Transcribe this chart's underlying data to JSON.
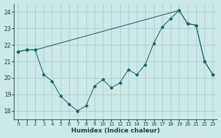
{
  "xlabel": "Humidex (Indice chaleur)",
  "background_color": "#cce8e8",
  "grid_color": "#aacccc",
  "line_color": "#1a6b6b",
  "xlim": [
    -0.5,
    23.5
  ],
  "ylim": [
    17.5,
    24.5
  ],
  "yticks": [
    18,
    19,
    20,
    21,
    22,
    23,
    24
  ],
  "xticks": [
    0,
    1,
    2,
    3,
    4,
    5,
    6,
    7,
    8,
    9,
    10,
    11,
    12,
    13,
    14,
    15,
    16,
    17,
    18,
    19,
    20,
    21,
    22,
    23
  ],
  "series_wavy_x": [
    0,
    1,
    2,
    3,
    4,
    5,
    6,
    7,
    8,
    9,
    10,
    11,
    12,
    13,
    14,
    15,
    16,
    17,
    18,
    19,
    20,
    21,
    22,
    23
  ],
  "series_wavy_y": [
    21.6,
    21.7,
    21.7,
    20.2,
    19.8,
    18.9,
    18.4,
    18.0,
    18.3,
    19.5,
    19.9,
    19.4,
    19.7,
    20.5,
    20.2,
    20.8,
    22.1,
    23.1,
    23.6,
    24.1,
    23.3,
    23.2,
    21.0,
    20.2
  ],
  "series_line_x": [
    0,
    1,
    2,
    19,
    20,
    21,
    22,
    23
  ],
  "series_line_y": [
    21.6,
    21.7,
    21.7,
    24.1,
    23.3,
    23.2,
    21.0,
    20.2
  ],
  "figsize": [
    3.2,
    2.0
  ],
  "dpi": 100
}
